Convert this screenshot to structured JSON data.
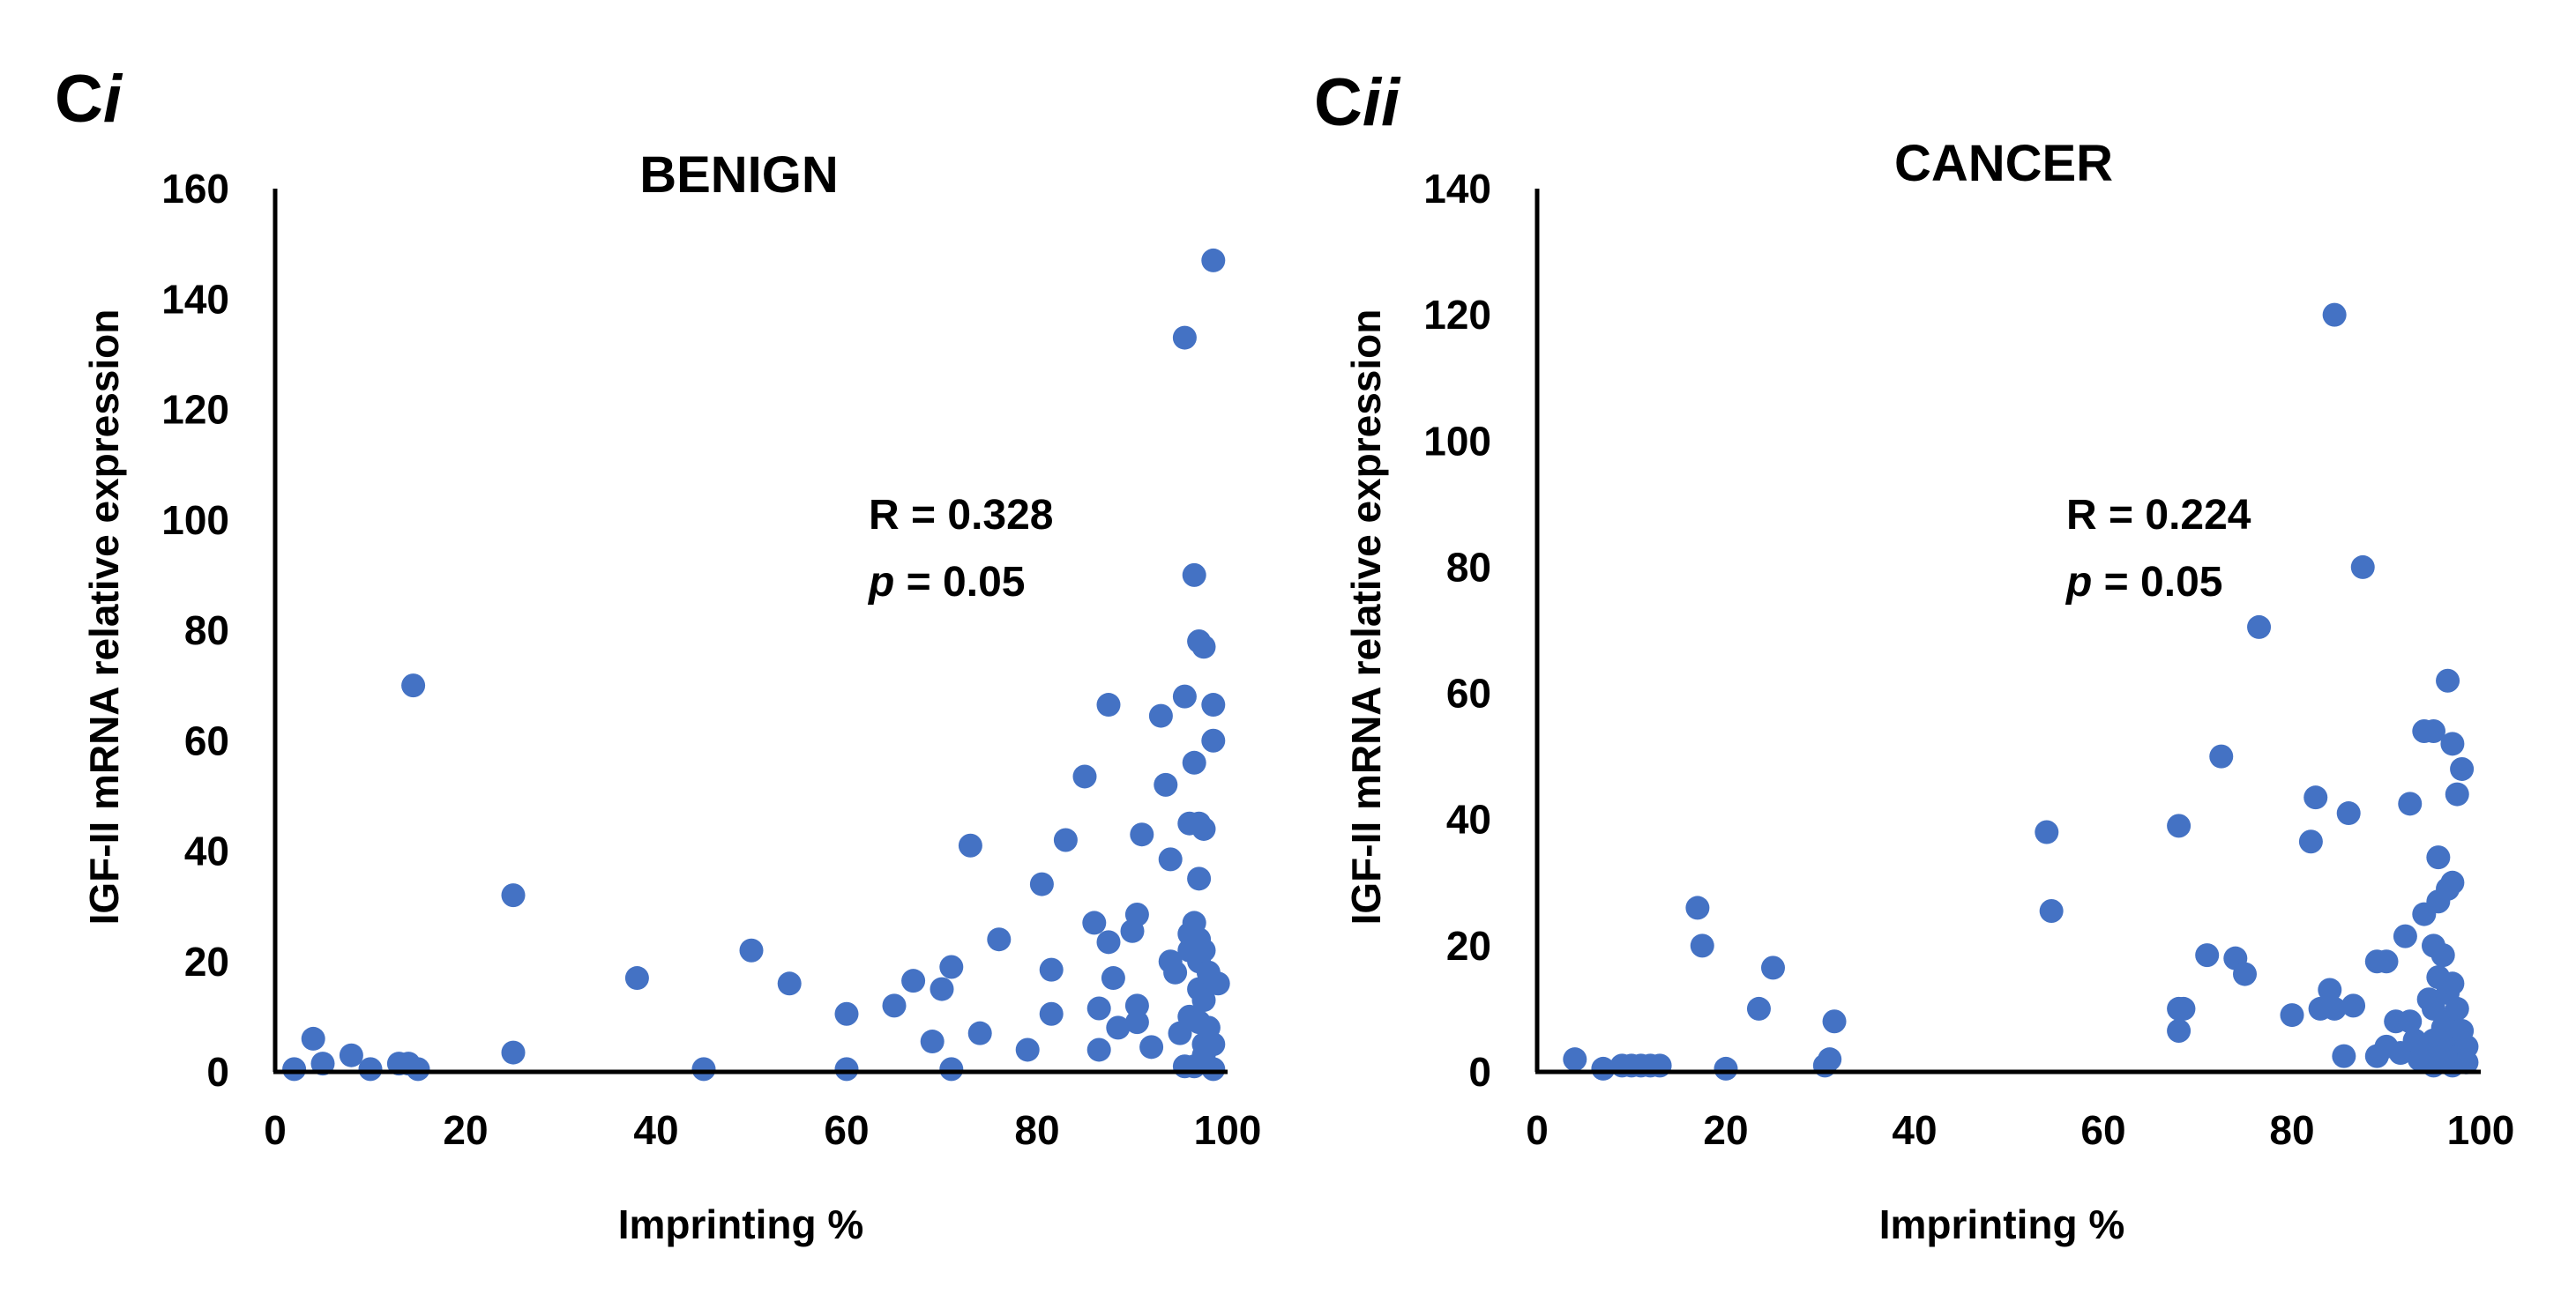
{
  "chart_data": [
    {
      "type": "scatter",
      "panel_label": {
        "main": "C",
        "suffix": "i"
      },
      "title": "BENIGN",
      "xlabel": "Imprinting %",
      "ylabel": "IGF-II mRNA relative expression",
      "xlim": [
        0,
        100
      ],
      "ylim": [
        0,
        160
      ],
      "xticks": [
        0,
        20,
        40,
        60,
        80,
        100
      ],
      "yticks": [
        0,
        20,
        40,
        60,
        80,
        100,
        120,
        140,
        160
      ],
      "grid": false,
      "annotation": {
        "r_label": "R = 0.328",
        "p_symbol": "p",
        "p_value": " = 0.05"
      },
      "marker_color": "#4472C4",
      "points": [
        [
          2,
          0.5
        ],
        [
          4,
          6
        ],
        [
          5,
          1.5
        ],
        [
          8,
          3
        ],
        [
          10,
          0.5
        ],
        [
          13,
          1.5
        ],
        [
          14,
          1.5
        ],
        [
          15,
          0.5
        ],
        [
          14.5,
          70
        ],
        [
          25,
          32
        ],
        [
          25,
          3.5
        ],
        [
          38,
          17
        ],
        [
          45,
          0.5
        ],
        [
          50,
          22
        ],
        [
          54,
          16
        ],
        [
          60,
          10.5
        ],
        [
          60,
          0.5
        ],
        [
          65,
          12
        ],
        [
          67,
          16.5
        ],
        [
          69,
          5.5
        ],
        [
          70,
          15
        ],
        [
          71,
          19
        ],
        [
          71,
          0.5
        ],
        [
          73,
          41
        ],
        [
          74,
          7
        ],
        [
          76,
          24
        ],
        [
          79,
          4
        ],
        [
          80.5,
          34
        ],
        [
          81.5,
          18.5
        ],
        [
          81.5,
          10.5
        ],
        [
          83,
          42
        ],
        [
          85,
          53.5
        ],
        [
          86,
          27
        ],
        [
          86.5,
          11.5
        ],
        [
          86.5,
          4
        ],
        [
          87.5,
          66.5
        ],
        [
          87.5,
          23.5
        ],
        [
          88,
          17
        ],
        [
          88.5,
          8
        ],
        [
          90,
          25.5
        ],
        [
          90.5,
          28.5
        ],
        [
          90.5,
          12
        ],
        [
          90.5,
          9
        ],
        [
          91,
          43
        ],
        [
          92,
          4.5
        ],
        [
          93,
          64.5
        ],
        [
          93.5,
          52
        ],
        [
          94,
          38.5
        ],
        [
          94,
          20
        ],
        [
          94.5,
          18
        ],
        [
          95,
          7
        ],
        [
          95.5,
          133
        ],
        [
          95.5,
          68
        ],
        [
          95.5,
          1
        ],
        [
          96,
          45
        ],
        [
          96,
          25
        ],
        [
          96,
          22
        ],
        [
          96,
          10
        ],
        [
          96.5,
          90
        ],
        [
          96.5,
          56
        ],
        [
          96.5,
          27
        ],
        [
          96.5,
          1
        ],
        [
          97,
          78
        ],
        [
          97,
          45
        ],
        [
          97,
          35
        ],
        [
          97,
          24
        ],
        [
          97,
          20
        ],
        [
          97,
          15
        ],
        [
          97,
          9
        ],
        [
          97.5,
          77
        ],
        [
          97.5,
          44
        ],
        [
          97.5,
          22
        ],
        [
          97.5,
          13
        ],
        [
          97.5,
          5
        ],
        [
          97.5,
          3
        ],
        [
          98,
          18
        ],
        [
          98,
          8
        ],
        [
          98.5,
          147
        ],
        [
          98.5,
          66.5
        ],
        [
          98.5,
          60
        ],
        [
          98.5,
          5
        ],
        [
          98.5,
          0.5
        ],
        [
          99,
          16
        ]
      ]
    },
    {
      "type": "scatter",
      "panel_label": {
        "main": "C",
        "suffix": "ii"
      },
      "title": "CANCER",
      "xlabel": "Imprinting %",
      "ylabel": "IGF-II mRNA relative expression",
      "xlim": [
        0,
        100
      ],
      "ylim": [
        0,
        140
      ],
      "xticks": [
        0,
        20,
        40,
        60,
        80,
        100
      ],
      "yticks": [
        0,
        20,
        40,
        60,
        80,
        100,
        120,
        140
      ],
      "grid": false,
      "annotation": {
        "r_label": "R = 0.224",
        "p_symbol": "p",
        "p_value": " = 0.05"
      },
      "marker_color": "#4472C4",
      "points": [
        [
          4,
          2
        ],
        [
          7,
          0.5
        ],
        [
          9,
          1
        ],
        [
          10,
          1
        ],
        [
          11,
          1
        ],
        [
          12,
          1
        ],
        [
          13,
          1
        ],
        [
          17,
          26
        ],
        [
          17.5,
          20
        ],
        [
          20,
          0.5
        ],
        [
          23.5,
          10
        ],
        [
          25,
          16.5
        ],
        [
          30.5,
          1
        ],
        [
          31,
          2
        ],
        [
          31.5,
          8
        ],
        [
          54,
          38
        ],
        [
          54.5,
          25.5
        ],
        [
          68,
          39
        ],
        [
          68,
          10
        ],
        [
          68,
          6.5
        ],
        [
          68.5,
          10
        ],
        [
          71,
          18.5
        ],
        [
          72.5,
          50
        ],
        [
          74,
          18
        ],
        [
          75,
          15.5
        ],
        [
          76.5,
          70.5
        ],
        [
          80,
          9
        ],
        [
          82,
          36.5
        ],
        [
          82.5,
          43.5
        ],
        [
          83,
          10
        ],
        [
          84,
          13
        ],
        [
          84.5,
          10
        ],
        [
          84.5,
          120
        ],
        [
          85.5,
          2.5
        ],
        [
          86,
          41
        ],
        [
          86.5,
          10.5
        ],
        [
          87.5,
          80
        ],
        [
          89,
          17.5
        ],
        [
          89,
          2.5
        ],
        [
          90,
          17.5
        ],
        [
          90,
          4
        ],
        [
          91,
          8
        ],
        [
          91.5,
          3
        ],
        [
          92,
          21.5
        ],
        [
          92.5,
          42.5
        ],
        [
          92.5,
          8
        ],
        [
          93,
          5
        ],
        [
          93.5,
          2
        ],
        [
          94,
          54
        ],
        [
          94,
          25
        ],
        [
          94.5,
          11.5
        ],
        [
          94.5,
          3
        ],
        [
          95,
          54
        ],
        [
          95,
          20
        ],
        [
          95,
          10
        ],
        [
          95,
          5
        ],
        [
          95,
          1
        ],
        [
          95.5,
          34
        ],
        [
          95.5,
          27
        ],
        [
          95.5,
          15
        ],
        [
          96,
          18.5
        ],
        [
          96,
          7
        ],
        [
          96,
          2.5
        ],
        [
          96.5,
          62
        ],
        [
          96.5,
          29
        ],
        [
          96.5,
          12.5
        ],
        [
          96.5,
          8
        ],
        [
          97,
          52
        ],
        [
          97,
          30
        ],
        [
          97,
          14
        ],
        [
          97,
          5
        ],
        [
          97,
          1
        ],
        [
          97.5,
          44
        ],
        [
          97.5,
          10
        ],
        [
          98,
          48
        ],
        [
          98,
          6.5
        ],
        [
          98,
          3
        ],
        [
          98.5,
          4
        ],
        [
          98.5,
          1.5
        ]
      ]
    }
  ]
}
